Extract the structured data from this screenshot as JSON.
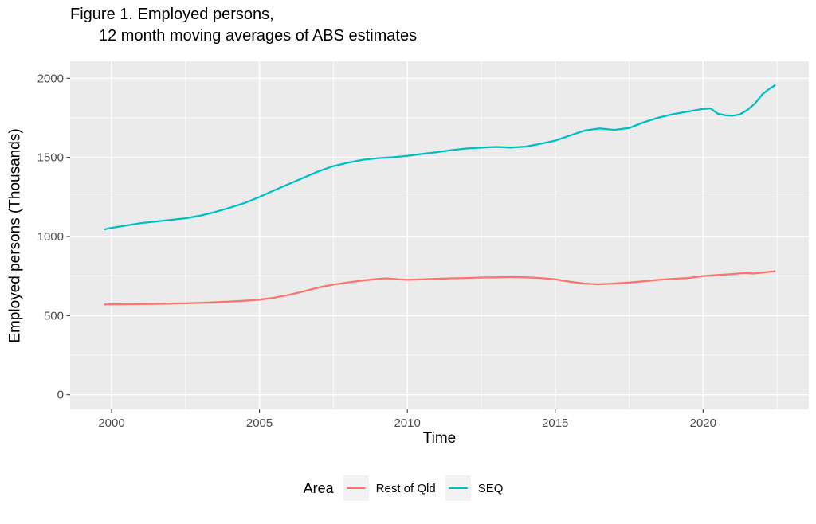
{
  "title": {
    "line1": "Figure 1. Employed persons,",
    "line2": "12 month moving averages of ABS estimates"
  },
  "chart_data": {
    "type": "line",
    "title": "Figure 1. Employed persons, 12 month moving averages of ABS estimates",
    "xlabel": "Time",
    "ylabel": "Employed persons (Thousands)",
    "legend_title": "Area",
    "legend_position": "bottom",
    "panel_background": "#EBEBEB",
    "gridline_color": "#FFFFFF",
    "tick_label_color": "#4D4D4D",
    "tick_mark_color": "#333333",
    "grid": "on",
    "x_ticks": [
      2000,
      2005,
      2010,
      2015,
      2020
    ],
    "x_minor_ticks": [
      2002.5,
      2007.5,
      2012.5,
      2017.5,
      2022.5
    ],
    "y_ticks": [
      0,
      500,
      1000,
      1500,
      2000
    ],
    "y_minor_ticks": [
      250,
      750,
      1250,
      1750
    ],
    "xlim": [
      1998.6,
      2023.6
    ],
    "ylim": [
      -90,
      2110
    ],
    "series": [
      {
        "name": "Rest of Qld",
        "color": "#F8766D",
        "points": [
          [
            1999.75,
            570
          ],
          [
            2000,
            571
          ],
          [
            2000.5,
            572
          ],
          [
            2001,
            573
          ],
          [
            2001.5,
            574
          ],
          [
            2002,
            576
          ],
          [
            2002.5,
            578
          ],
          [
            2003,
            581
          ],
          [
            2003.5,
            585
          ],
          [
            2004,
            589
          ],
          [
            2004.5,
            594
          ],
          [
            2005,
            601
          ],
          [
            2005.5,
            613
          ],
          [
            2006,
            631
          ],
          [
            2006.5,
            653
          ],
          [
            2007,
            678
          ],
          [
            2007.5,
            696
          ],
          [
            2008,
            710
          ],
          [
            2008.5,
            722
          ],
          [
            2009,
            732
          ],
          [
            2009.3,
            736
          ],
          [
            2009.7,
            729
          ],
          [
            2010,
            726
          ],
          [
            2010.5,
            729
          ],
          [
            2011,
            733
          ],
          [
            2011.5,
            736
          ],
          [
            2012,
            738
          ],
          [
            2012.5,
            741
          ],
          [
            2013,
            742
          ],
          [
            2013.5,
            744
          ],
          [
            2014,
            742
          ],
          [
            2014.5,
            738
          ],
          [
            2015,
            729
          ],
          [
            2015.5,
            714
          ],
          [
            2016,
            703
          ],
          [
            2016.4,
            698
          ],
          [
            2016.8,
            701
          ],
          [
            2017,
            703
          ],
          [
            2017.5,
            709
          ],
          [
            2018,
            717
          ],
          [
            2018.5,
            726
          ],
          [
            2019,
            733
          ],
          [
            2019.5,
            738
          ],
          [
            2020,
            750
          ],
          [
            2020.5,
            757
          ],
          [
            2021,
            763
          ],
          [
            2021.4,
            769
          ],
          [
            2021.7,
            766
          ],
          [
            2022,
            772
          ],
          [
            2022.45,
            781
          ]
        ]
      },
      {
        "name": "SEQ",
        "color": "#00BFC4",
        "points": [
          [
            1999.75,
            1045
          ],
          [
            2000,
            1055
          ],
          [
            2000.5,
            1070
          ],
          [
            2001,
            1085
          ],
          [
            2001.5,
            1095
          ],
          [
            2002,
            1105
          ],
          [
            2002.5,
            1115
          ],
          [
            2003,
            1132
          ],
          [
            2003.5,
            1155
          ],
          [
            2004,
            1182
          ],
          [
            2004.5,
            1212
          ],
          [
            2005,
            1250
          ],
          [
            2005.5,
            1292
          ],
          [
            2006,
            1332
          ],
          [
            2006.5,
            1372
          ],
          [
            2007,
            1412
          ],
          [
            2007.5,
            1445
          ],
          [
            2008,
            1467
          ],
          [
            2008.5,
            1485
          ],
          [
            2009,
            1495
          ],
          [
            2009.5,
            1501
          ],
          [
            2010,
            1510
          ],
          [
            2010.5,
            1522
          ],
          [
            2011,
            1533
          ],
          [
            2011.5,
            1546
          ],
          [
            2012,
            1556
          ],
          [
            2012.5,
            1562
          ],
          [
            2013,
            1566
          ],
          [
            2013.5,
            1562
          ],
          [
            2014,
            1568
          ],
          [
            2014.5,
            1586
          ],
          [
            2015,
            1606
          ],
          [
            2015.5,
            1638
          ],
          [
            2016,
            1670
          ],
          [
            2016.5,
            1683
          ],
          [
            2017,
            1674
          ],
          [
            2017.5,
            1686
          ],
          [
            2018,
            1722
          ],
          [
            2018.5,
            1752
          ],
          [
            2019,
            1774
          ],
          [
            2019.5,
            1790
          ],
          [
            2020,
            1806
          ],
          [
            2020.25,
            1810
          ],
          [
            2020.5,
            1776
          ],
          [
            2020.75,
            1766
          ],
          [
            2021,
            1763
          ],
          [
            2021.25,
            1772
          ],
          [
            2021.5,
            1800
          ],
          [
            2021.75,
            1840
          ],
          [
            2022,
            1898
          ],
          [
            2022.2,
            1928
          ],
          [
            2022.45,
            1958
          ]
        ]
      }
    ]
  }
}
